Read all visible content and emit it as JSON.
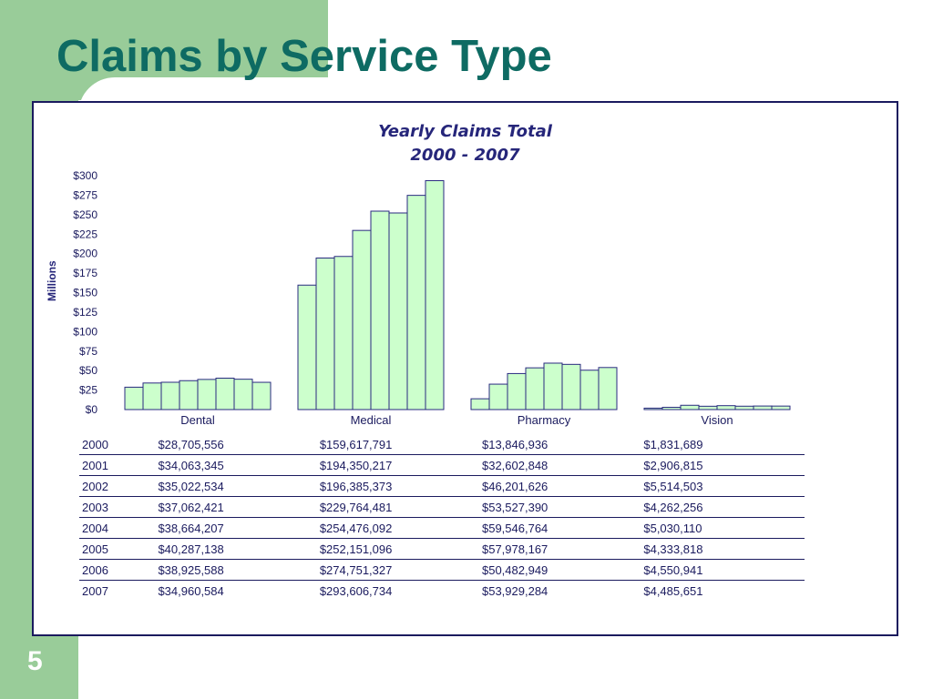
{
  "slide": {
    "title": "Claims by Service Type",
    "page_number": "5"
  },
  "colors": {
    "accent_green": "#99cc99",
    "title_teal": "#0e6b63",
    "bar_fill": "#ccffcc",
    "bar_stroke": "#2a2a80",
    "text_navy": "#1a1a5e"
  },
  "chart_data": {
    "type": "bar",
    "title": "Yearly Claims Total",
    "subtitle": "2000 - 2007",
    "ylabel": "Millions",
    "xlabel": "",
    "categories": [
      "Dental",
      "Medical",
      "Pharmacy",
      "Vision"
    ],
    "ylim": [
      0,
      300
    ],
    "yticks": [
      "$0",
      "$25",
      "$50",
      "$75",
      "$100",
      "$125",
      "$150",
      "$175",
      "$200",
      "$225",
      "$250",
      "$275",
      "$300"
    ],
    "ytick_values": [
      0,
      25,
      50,
      75,
      100,
      125,
      150,
      175,
      200,
      225,
      250,
      275,
      300
    ],
    "legend": "none",
    "grid": false,
    "series": [
      {
        "name": "2000",
        "values": [
          28.705556,
          159.617791,
          13.846936,
          1.831689
        ]
      },
      {
        "name": "2001",
        "values": [
          34.063345,
          194.350217,
          32.602848,
          2.906815
        ]
      },
      {
        "name": "2002",
        "values": [
          35.022534,
          196.385373,
          46.201626,
          5.514503
        ]
      },
      {
        "name": "2003",
        "values": [
          37.062421,
          229.764481,
          53.52739,
          4.262256
        ]
      },
      {
        "name": "2004",
        "values": [
          38.664207,
          254.476092,
          59.546764,
          5.03011
        ]
      },
      {
        "name": "2005",
        "values": [
          40.287138,
          252.151096,
          57.978167,
          4.333818
        ]
      },
      {
        "name": "2006",
        "values": [
          38.925588,
          274.751327,
          50.482949,
          4.550941
        ]
      },
      {
        "name": "2007",
        "values": [
          34.960584,
          293.606734,
          53.929284,
          4.485651
        ]
      }
    ],
    "table": {
      "rows": [
        {
          "year": "2000",
          "cells": [
            "$28,705,556",
            "$159,617,791",
            "$13,846,936",
            "$1,831,689"
          ]
        },
        {
          "year": "2001",
          "cells": [
            "$34,063,345",
            "$194,350,217",
            "$32,602,848",
            "$2,906,815"
          ]
        },
        {
          "year": "2002",
          "cells": [
            "$35,022,534",
            "$196,385,373",
            "$46,201,626",
            "$5,514,503"
          ]
        },
        {
          "year": "2003",
          "cells": [
            "$37,062,421",
            "$229,764,481",
            "$53,527,390",
            "$4,262,256"
          ]
        },
        {
          "year": "2004",
          "cells": [
            "$38,664,207",
            "$254,476,092",
            "$59,546,764",
            "$5,030,110"
          ]
        },
        {
          "year": "2005",
          "cells": [
            "$40,287,138",
            "$252,151,096",
            "$57,978,167",
            "$4,333,818"
          ]
        },
        {
          "year": "2006",
          "cells": [
            "$38,925,588",
            "$274,751,327",
            "$50,482,949",
            "$4,550,941"
          ]
        },
        {
          "year": "2007",
          "cells": [
            "$34,960,584",
            "$293,606,734",
            "$53,929,284",
            "$4,485,651"
          ]
        }
      ]
    }
  }
}
